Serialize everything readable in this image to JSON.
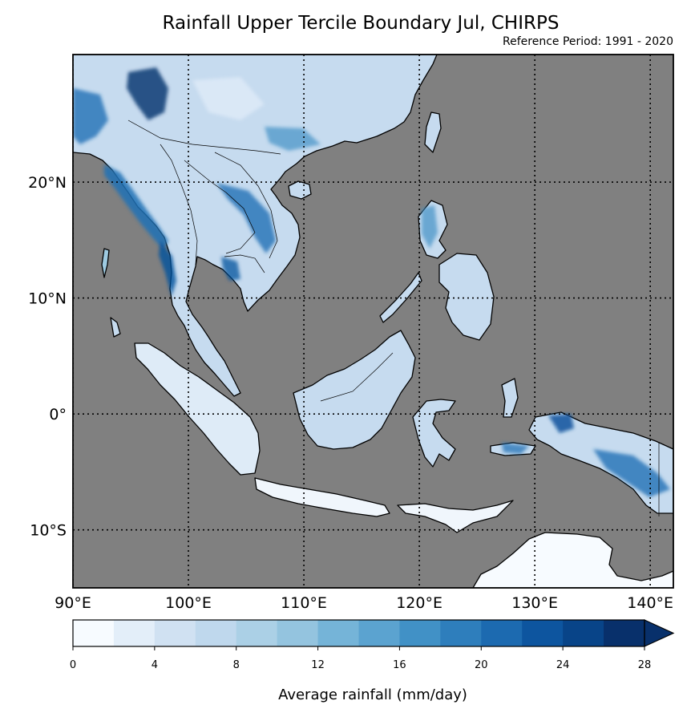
{
  "title": "Rainfall Upper Tercile Boundary Jul, CHIRPS",
  "subtitle": "Reference Period: 1991 - 2020",
  "map": {
    "extent": {
      "lon": [
        90,
        142
      ],
      "lat": [
        -15,
        31
      ]
    },
    "ocean_color": "#808080",
    "land_colormap": "Blues",
    "gridlines": "dotted",
    "lon_ticks": [
      {
        "value": 90,
        "label": "90°E"
      },
      {
        "value": 100,
        "label": "100°E"
      },
      {
        "value": 110,
        "label": "110°E"
      },
      {
        "value": 120,
        "label": "120°E"
      },
      {
        "value": 130,
        "label": "130°E"
      },
      {
        "value": 140,
        "label": "140°E"
      }
    ],
    "lat_ticks": [
      {
        "value": 20,
        "label": "20°N"
      },
      {
        "value": 10,
        "label": "10°N"
      },
      {
        "value": 0,
        "label": "0°"
      },
      {
        "value": -10,
        "label": "10°S"
      }
    ]
  },
  "colorbar": {
    "label": "Average rainfall (mm/day)",
    "min": 0,
    "max": 28,
    "step": 2,
    "extend": "max",
    "ticks": [
      {
        "value": 0,
        "label": "0"
      },
      {
        "value": 4,
        "label": "4"
      },
      {
        "value": 8,
        "label": "8"
      },
      {
        "value": 12,
        "label": "12"
      },
      {
        "value": 16,
        "label": "16"
      },
      {
        "value": 20,
        "label": "20"
      },
      {
        "value": 24,
        "label": "24"
      },
      {
        "value": 28,
        "label": "28"
      }
    ],
    "colors": [
      "#f7fbff",
      "#e3eef9",
      "#d0e1f2",
      "#bfd8ed",
      "#abd0e6",
      "#94c4df",
      "#75b4d8",
      "#5ba3d0",
      "#4191c6",
      "#2e7ebc",
      "#1c6ab0",
      "#0d559f",
      "#084488",
      "#08306b"
    ]
  }
}
